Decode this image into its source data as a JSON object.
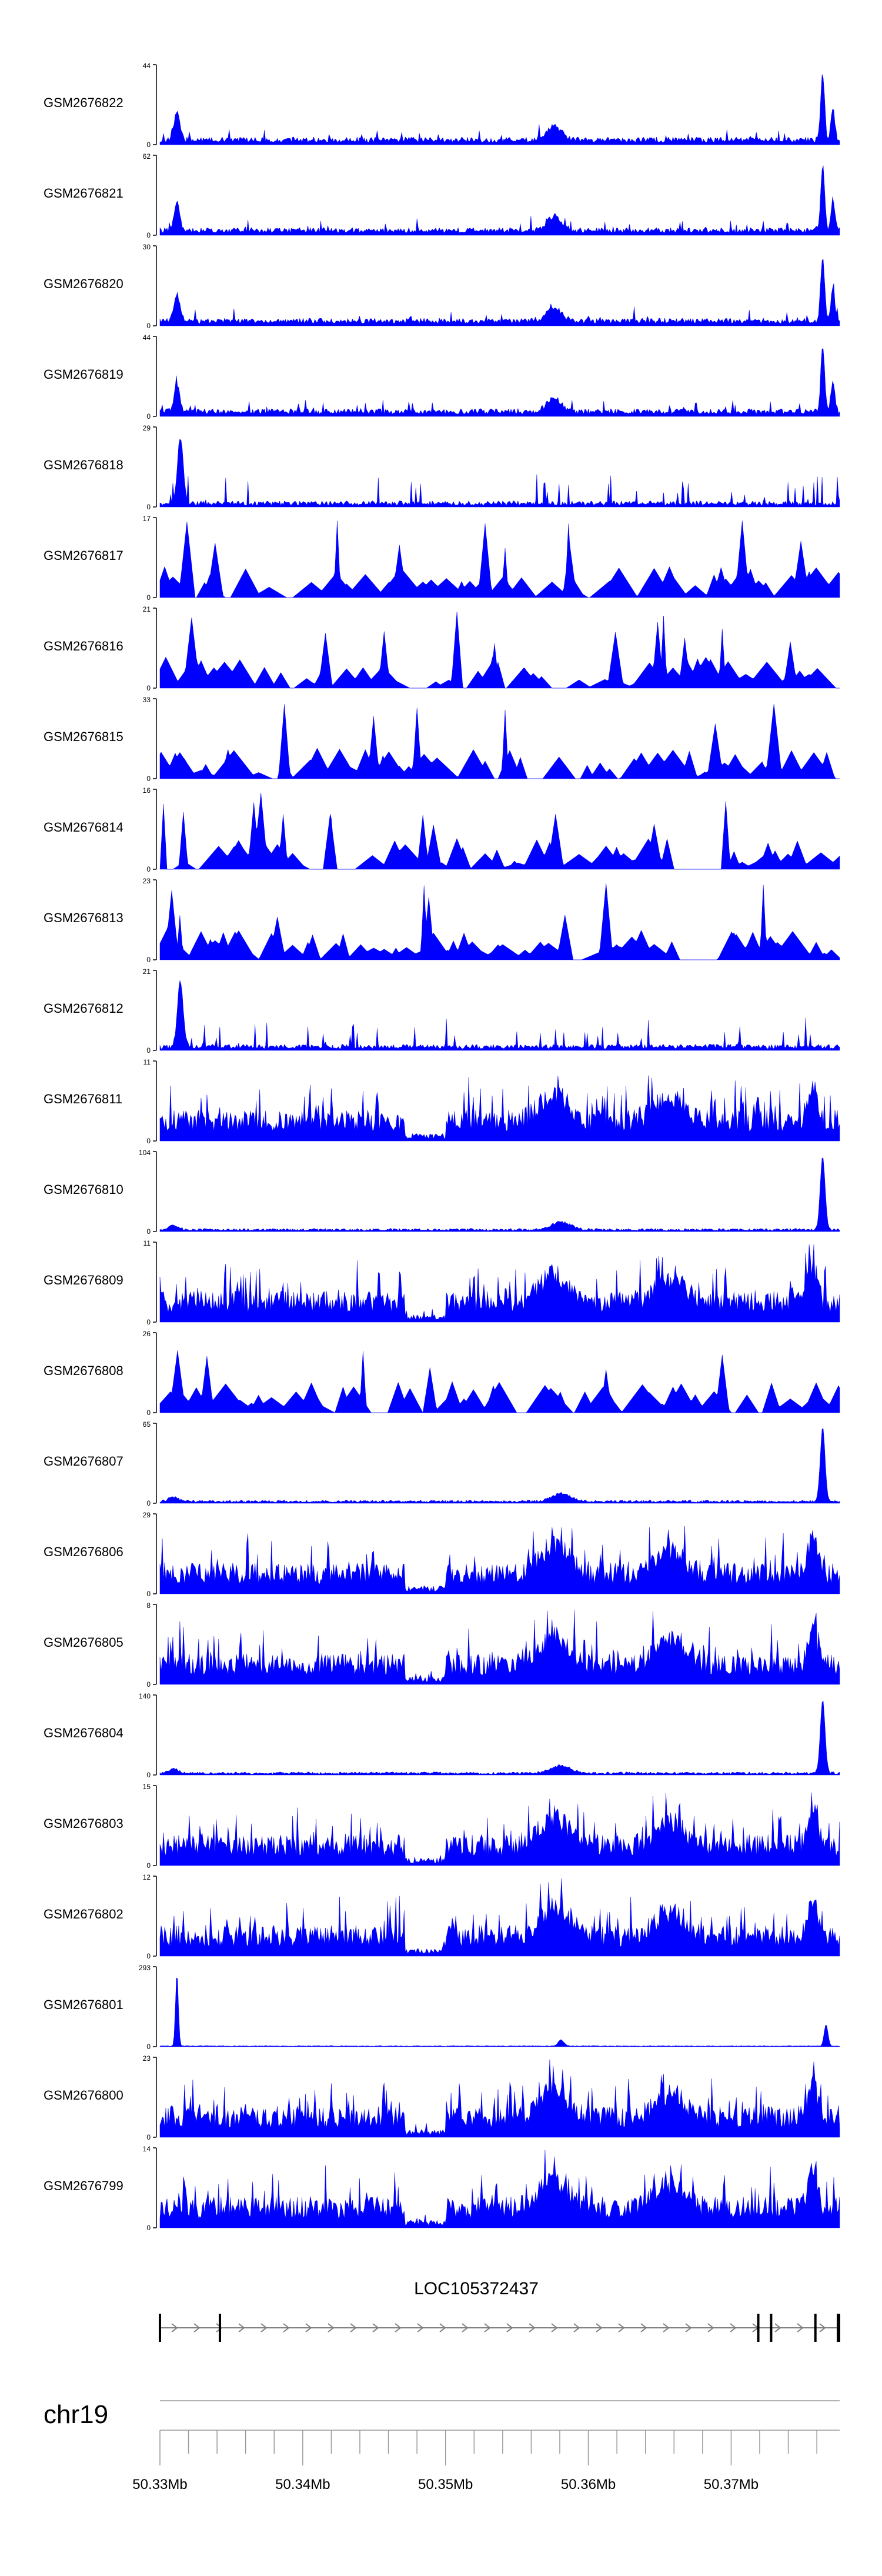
{
  "chart_data": {
    "type": "area",
    "description_kind": "genome browser coverage tracks",
    "track_color": "#0000ff",
    "axis_color": "#000000",
    "tracks": [
      {
        "name": "GSM2676822",
        "ymax": "44",
        "ymin": "0",
        "profile": "A"
      },
      {
        "name": "GSM2676821",
        "ymax": "62",
        "ymin": "0",
        "profile": "A"
      },
      {
        "name": "GSM2676820",
        "ymax": "30",
        "ymin": "0",
        "profile": "A"
      },
      {
        "name": "GSM2676819",
        "ymax": "44",
        "ymin": "0",
        "profile": "A"
      },
      {
        "name": "GSM2676818",
        "ymax": "29",
        "ymin": "0",
        "profile": "B"
      },
      {
        "name": "GSM2676817",
        "ymax": "17",
        "ymin": "0",
        "profile": "S"
      },
      {
        "name": "GSM2676816",
        "ymax": "21",
        "ymin": "0",
        "profile": "S"
      },
      {
        "name": "GSM2676815",
        "ymax": "33",
        "ymin": "0",
        "profile": "S"
      },
      {
        "name": "GSM2676814",
        "ymax": "16",
        "ymin": "0",
        "profile": "S"
      },
      {
        "name": "GSM2676813",
        "ymax": "23",
        "ymin": "0",
        "profile": "S"
      },
      {
        "name": "GSM2676812",
        "ymax": "21",
        "ymin": "0",
        "profile": "B"
      },
      {
        "name": "GSM2676811",
        "ymax": "11",
        "ymin": "0",
        "profile": "D"
      },
      {
        "name": "GSM2676810",
        "ymax": "104",
        "ymin": "0",
        "profile": "E"
      },
      {
        "name": "GSM2676809",
        "ymax": "11",
        "ymin": "0",
        "profile": "D"
      },
      {
        "name": "GSM2676808",
        "ymax": "26",
        "ymin": "0",
        "profile": "S"
      },
      {
        "name": "GSM2676807",
        "ymax": "65",
        "ymin": "0",
        "profile": "E"
      },
      {
        "name": "GSM2676806",
        "ymax": "29",
        "ymin": "0",
        "profile": "D"
      },
      {
        "name": "GSM2676805",
        "ymax": "8",
        "ymin": "0",
        "profile": "D"
      },
      {
        "name": "GSM2676804",
        "ymax": "140",
        "ymin": "0",
        "profile": "E"
      },
      {
        "name": "GSM2676803",
        "ymax": "15",
        "ymin": "0",
        "profile": "D"
      },
      {
        "name": "GSM2676802",
        "ymax": "12",
        "ymin": "0",
        "profile": "D"
      },
      {
        "name": "GSM2676801",
        "ymax": "293",
        "ymin": "0",
        "profile": "F"
      },
      {
        "name": "GSM2676800",
        "ymax": "23",
        "ymin": "0",
        "profile": "D"
      },
      {
        "name": "GSM2676799",
        "ymax": "14",
        "ymin": "0",
        "profile": "D"
      }
    ],
    "gene": {
      "name": "LOC105372437",
      "start_mb": 50.33,
      "end_mb": 50.3776,
      "exons_mb": [
        50.33,
        50.3342,
        50.3719,
        50.3728,
        50.3759,
        50.3776
      ],
      "strand": "+"
    },
    "chromosome": "chr19",
    "x_range_mb": [
      50.33,
      50.3776
    ],
    "minor_tick_step_mb": 0.002,
    "major_ticks": [
      {
        "value": 50.33,
        "label": "50.33Mb"
      },
      {
        "value": 50.34,
        "label": "50.34Mb"
      },
      {
        "value": 50.35,
        "label": "50.35Mb"
      },
      {
        "value": 50.36,
        "label": "50.36Mb"
      },
      {
        "value": 50.37,
        "label": "50.37Mb"
      }
    ]
  }
}
